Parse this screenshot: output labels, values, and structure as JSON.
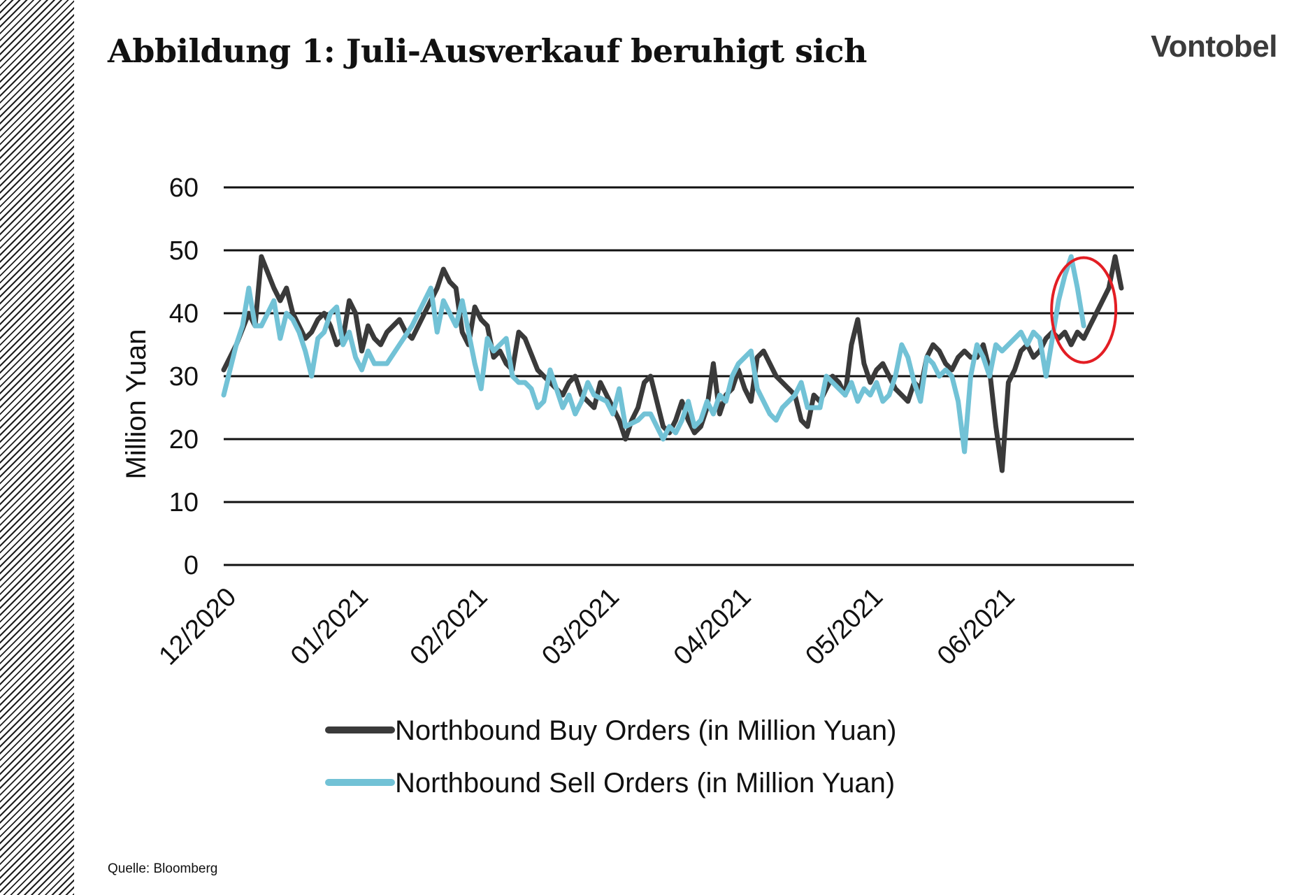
{
  "title": "Abbildung 1: Juli-Ausverkauf beruhigt sich",
  "brand": "Vontobel",
  "source": "Quelle: Bloomberg",
  "colors": {
    "buy": "#3a3a3a",
    "sell": "#72c2d6",
    "highlight": "#e31e24",
    "grid": "#111111"
  },
  "chart_data": {
    "type": "line",
    "ylabel": "Million Yuan",
    "ylim": [
      0,
      60
    ],
    "yticks": [
      0,
      10,
      20,
      30,
      40,
      50,
      60
    ],
    "xlim": [
      0,
      145
    ],
    "x_ticks": [
      {
        "x": 0,
        "label": "12/2020"
      },
      {
        "x": 21,
        "label": "01/2021"
      },
      {
        "x": 40,
        "label": "02/2021"
      },
      {
        "x": 61,
        "label": "03/2021"
      },
      {
        "x": 82,
        "label": "04/2021"
      },
      {
        "x": 103,
        "label": "05/2021"
      },
      {
        "x": 124,
        "label": "06/2021"
      }
    ],
    "grid": true,
    "legend_position": "bottom",
    "series": [
      {
        "name": "Northbound Buy Orders (in Million Yuan)",
        "points": [
          [
            0,
            31
          ],
          [
            2,
            35
          ],
          [
            4,
            40
          ],
          [
            5,
            38
          ],
          [
            6,
            49
          ],
          [
            8,
            44
          ],
          [
            9,
            42
          ],
          [
            10,
            44
          ],
          [
            11,
            40
          ],
          [
            12,
            38
          ],
          [
            13,
            36
          ],
          [
            14,
            37
          ],
          [
            15,
            39
          ],
          [
            16,
            40
          ],
          [
            17,
            38
          ],
          [
            18,
            35
          ],
          [
            19,
            36
          ],
          [
            20,
            42
          ],
          [
            21,
            40
          ],
          [
            22,
            34
          ],
          [
            23,
            38
          ],
          [
            24,
            36
          ],
          [
            25,
            35
          ],
          [
            26,
            37
          ],
          [
            27,
            38
          ],
          [
            28,
            39
          ],
          [
            29,
            37
          ],
          [
            30,
            36
          ],
          [
            32,
            40
          ],
          [
            34,
            44
          ],
          [
            35,
            47
          ],
          [
            36,
            45
          ],
          [
            37,
            44
          ],
          [
            38,
            37
          ],
          [
            39,
            35
          ],
          [
            40,
            41
          ],
          [
            41,
            39
          ],
          [
            42,
            38
          ],
          [
            43,
            33
          ],
          [
            44,
            34
          ],
          [
            45,
            32
          ],
          [
            46,
            31
          ],
          [
            47,
            37
          ],
          [
            48,
            36
          ],
          [
            50,
            31
          ],
          [
            51,
            30
          ],
          [
            52,
            29
          ],
          [
            53,
            28
          ],
          [
            54,
            27
          ],
          [
            55,
            29
          ],
          [
            56,
            30
          ],
          [
            57,
            27
          ],
          [
            58,
            26
          ],
          [
            59,
            25
          ],
          [
            60,
            29
          ],
          [
            61,
            27
          ],
          [
            62,
            25
          ],
          [
            63,
            23
          ],
          [
            64,
            20
          ],
          [
            65,
            23
          ],
          [
            66,
            25
          ],
          [
            67,
            29
          ],
          [
            68,
            30
          ],
          [
            69,
            26
          ],
          [
            70,
            22
          ],
          [
            71,
            21
          ],
          [
            72,
            23
          ],
          [
            73,
            26
          ],
          [
            74,
            23
          ],
          [
            75,
            21
          ],
          [
            76,
            22
          ],
          [
            77,
            25
          ],
          [
            78,
            32
          ],
          [
            79,
            24
          ],
          [
            80,
            27
          ],
          [
            81,
            28
          ],
          [
            82,
            31
          ],
          [
            83,
            28
          ],
          [
            84,
            26
          ],
          [
            85,
            33
          ],
          [
            86,
            34
          ],
          [
            87,
            32
          ],
          [
            88,
            30
          ],
          [
            89,
            29
          ],
          [
            90,
            28
          ],
          [
            91,
            27
          ],
          [
            92,
            23
          ],
          [
            93,
            22
          ],
          [
            94,
            27
          ],
          [
            95,
            26
          ],
          [
            96,
            28
          ],
          [
            97,
            30
          ],
          [
            98,
            29
          ],
          [
            99,
            27
          ],
          [
            100,
            35
          ],
          [
            101,
            39
          ],
          [
            102,
            32
          ],
          [
            103,
            29
          ],
          [
            104,
            31
          ],
          [
            105,
            32
          ],
          [
            106,
            30
          ],
          [
            107,
            28
          ],
          [
            108,
            27
          ],
          [
            109,
            26
          ],
          [
            110,
            29
          ],
          [
            111,
            28
          ],
          [
            112,
            33
          ],
          [
            113,
            35
          ],
          [
            114,
            34
          ],
          [
            115,
            32
          ],
          [
            116,
            31
          ],
          [
            117,
            33
          ],
          [
            118,
            34
          ],
          [
            119,
            33
          ],
          [
            120,
            33
          ],
          [
            121,
            35
          ],
          [
            122,
            31
          ],
          [
            123,
            22
          ],
          [
            124,
            15
          ],
          [
            125,
            29
          ],
          [
            126,
            31
          ],
          [
            127,
            34
          ],
          [
            128,
            35
          ],
          [
            129,
            33
          ],
          [
            130,
            34
          ],
          [
            131,
            36
          ],
          [
            132,
            37
          ],
          [
            133,
            36
          ],
          [
            134,
            37
          ],
          [
            135,
            35
          ],
          [
            136,
            37
          ],
          [
            137,
            36
          ],
          [
            138,
            38
          ],
          [
            139,
            40
          ],
          [
            140,
            42
          ],
          [
            141,
            44
          ],
          [
            142,
            49
          ],
          [
            143,
            44
          ]
        ]
      },
      {
        "name": "Northbound Sell Orders (in Million Yuan)",
        "points": [
          [
            0,
            27
          ],
          [
            1,
            31
          ],
          [
            2,
            35
          ],
          [
            3,
            38
          ],
          [
            4,
            44
          ],
          [
            5,
            38
          ],
          [
            6,
            38
          ],
          [
            7,
            40
          ],
          [
            8,
            42
          ],
          [
            9,
            36
          ],
          [
            10,
            40
          ],
          [
            11,
            39
          ],
          [
            12,
            37
          ],
          [
            13,
            34
          ],
          [
            14,
            30
          ],
          [
            15,
            36
          ],
          [
            16,
            37
          ],
          [
            17,
            40
          ],
          [
            18,
            41
          ],
          [
            19,
            35
          ],
          [
            20,
            37
          ],
          [
            21,
            33
          ],
          [
            22,
            31
          ],
          [
            23,
            34
          ],
          [
            24,
            32
          ],
          [
            25,
            32
          ],
          [
            26,
            32
          ],
          [
            28,
            35
          ],
          [
            30,
            38
          ],
          [
            32,
            42
          ],
          [
            33,
            44
          ],
          [
            34,
            37
          ],
          [
            35,
            42
          ],
          [
            36,
            40
          ],
          [
            37,
            38
          ],
          [
            38,
            42
          ],
          [
            39,
            37
          ],
          [
            40,
            32
          ],
          [
            41,
            28
          ],
          [
            42,
            36
          ],
          [
            43,
            34
          ],
          [
            44,
            35
          ],
          [
            45,
            36
          ],
          [
            46,
            30
          ],
          [
            47,
            29
          ],
          [
            48,
            29
          ],
          [
            49,
            28
          ],
          [
            50,
            25
          ],
          [
            51,
            26
          ],
          [
            52,
            31
          ],
          [
            53,
            28
          ],
          [
            54,
            25
          ],
          [
            55,
            27
          ],
          [
            56,
            24
          ],
          [
            57,
            26
          ],
          [
            58,
            29
          ],
          [
            59,
            27
          ],
          [
            61,
            26
          ],
          [
            62,
            24
          ],
          [
            63,
            28
          ],
          [
            64,
            22
          ],
          [
            66,
            23
          ],
          [
            67,
            24
          ],
          [
            68,
            24
          ],
          [
            69,
            22
          ],
          [
            70,
            20
          ],
          [
            71,
            22
          ],
          [
            72,
            21
          ],
          [
            73,
            23
          ],
          [
            74,
            26
          ],
          [
            75,
            22
          ],
          [
            76,
            23
          ],
          [
            77,
            26
          ],
          [
            78,
            24
          ],
          [
            79,
            27
          ],
          [
            80,
            26
          ],
          [
            81,
            30
          ],
          [
            82,
            32
          ],
          [
            83,
            33
          ],
          [
            84,
            34
          ],
          [
            85,
            28
          ],
          [
            86,
            26
          ],
          [
            87,
            24
          ],
          [
            88,
            23
          ],
          [
            89,
            25
          ],
          [
            90,
            26
          ],
          [
            91,
            27
          ],
          [
            92,
            29
          ],
          [
            93,
            25
          ],
          [
            94,
            25
          ],
          [
            95,
            25
          ],
          [
            96,
            30
          ],
          [
            97,
            29
          ],
          [
            98,
            28
          ],
          [
            99,
            27
          ],
          [
            100,
            29
          ],
          [
            101,
            26
          ],
          [
            102,
            28
          ],
          [
            103,
            27
          ],
          [
            104,
            29
          ],
          [
            105,
            26
          ],
          [
            106,
            27
          ],
          [
            107,
            30
          ],
          [
            108,
            35
          ],
          [
            109,
            33
          ],
          [
            110,
            29
          ],
          [
            111,
            26
          ],
          [
            112,
            33
          ],
          [
            113,
            32
          ],
          [
            114,
            30
          ],
          [
            115,
            31
          ],
          [
            116,
            30
          ],
          [
            117,
            26
          ],
          [
            118,
            18
          ],
          [
            119,
            30
          ],
          [
            120,
            35
          ],
          [
            121,
            33
          ],
          [
            122,
            30
          ],
          [
            123,
            35
          ],
          [
            124,
            34
          ],
          [
            125,
            35
          ],
          [
            126,
            36
          ],
          [
            127,
            37
          ],
          [
            128,
            35
          ],
          [
            129,
            37
          ],
          [
            130,
            36
          ],
          [
            131,
            30
          ],
          [
            132,
            36
          ],
          [
            133,
            42
          ],
          [
            134,
            46
          ],
          [
            135,
            49
          ],
          [
            136,
            44
          ],
          [
            137,
            38
          ]
        ]
      }
    ],
    "annotation": {
      "type": "ellipse",
      "x": 137,
      "y": 40.5
    }
  }
}
